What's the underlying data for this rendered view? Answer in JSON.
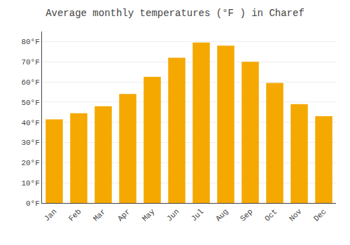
{
  "chart_data": {
    "type": "bar",
    "title": "Average monthly temperatures (°F ) in Charef",
    "categories": [
      "Jan",
      "Feb",
      "Mar",
      "Apr",
      "May",
      "Jun",
      "Jul",
      "Aug",
      "Sep",
      "Oct",
      "Nov",
      "Dec"
    ],
    "values": [
      41.5,
      44.5,
      48,
      54,
      62.5,
      72,
      79.5,
      78,
      70,
      59.5,
      49,
      43
    ],
    "color": "#F5A800",
    "ylim": [
      0,
      85
    ],
    "yticks": [
      {
        "value": 0,
        "label": "0°F"
      },
      {
        "value": 10,
        "label": "10°F"
      },
      {
        "value": 20,
        "label": "20°F"
      },
      {
        "value": 30,
        "label": "30°F"
      },
      {
        "value": 40,
        "label": "40°F"
      },
      {
        "value": 50,
        "label": "50°F"
      },
      {
        "value": 60,
        "label": "60°F"
      },
      {
        "value": 70,
        "label": "70°F"
      },
      {
        "value": 80,
        "label": "80°F"
      }
    ],
    "grid": true
  }
}
